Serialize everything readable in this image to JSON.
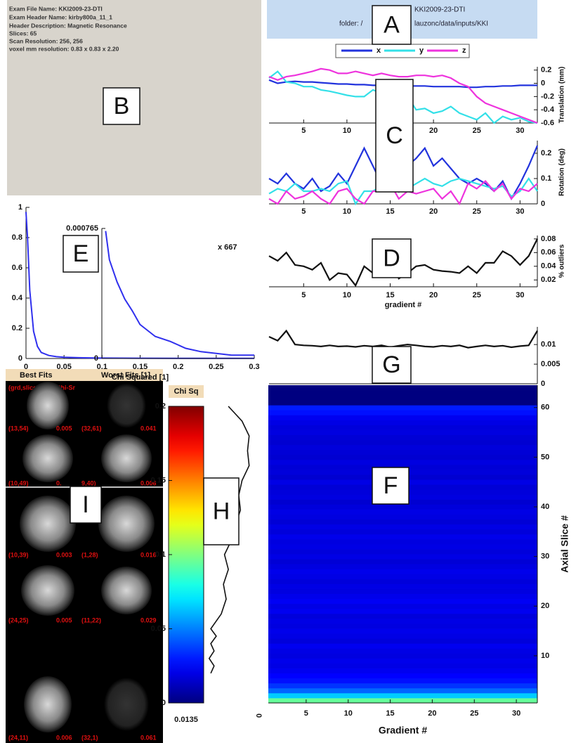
{
  "header": {
    "line1": "KKI2009-23-DTI",
    "line2": "folder: /",
    "line3": "lauzonc/data/inputs/KKI"
  },
  "info": [
    "Exam File Name:  KKI2009-23-DTI",
    "Exam Header Name:  kirby800a_11_1",
    "Header Description:  Magnetic Resonance",
    "Slices: 65",
    "Scan Resolution: 256, 256",
    "voxel mm resolution: 0.83 x 0.83 x 2.20"
  ],
  "panel_labels": [
    "A",
    "B",
    "C",
    "D",
    "E",
    "F",
    "G",
    "H",
    "I"
  ],
  "fits": {
    "headers": [
      "Best Fits",
      "Worst Fits [1]"
    ],
    "columns": [
      "(grd,slice)",
      "Chi-Sr"
    ],
    "rows": [
      [
        "(13,54)",
        "0.005",
        "(32,61)",
        "0.041"
      ],
      [
        "(10,49)",
        "0.",
        "9,40)",
        "0.006"
      ],
      [
        "(10,39)",
        "0.003",
        "(1,28)",
        "0.016"
      ],
      [
        "(24,25)",
        "0.005",
        "(11,22)",
        "0.029"
      ],
      [
        "(24,11)",
        "0.006",
        "(32,1)",
        "0.061"
      ]
    ]
  },
  "chart_data": [
    {
      "type": "line",
      "y_label": "Translation (mm)",
      "xlim": [
        1,
        32
      ],
      "ylim": [
        -0.6,
        0.25
      ],
      "yticks": [
        0.2,
        0,
        -0.2,
        -0.4,
        -0.6
      ],
      "xticks": [
        5,
        10,
        15,
        20,
        25,
        30
      ],
      "x": [
        1,
        2,
        3,
        4,
        5,
        6,
        7,
        8,
        9,
        10,
        11,
        12,
        13,
        14,
        15,
        16,
        17,
        18,
        19,
        20,
        21,
        22,
        23,
        24,
        25,
        26,
        27,
        28,
        29,
        30,
        31,
        32
      ],
      "series": [
        {
          "name": "x",
          "color": "#2233dd",
          "values": [
            0.05,
            0.0,
            0.02,
            0.03,
            0.02,
            0.02,
            0.01,
            0.0,
            -0.01,
            -0.01,
            -0.02,
            -0.02,
            -0.03,
            -0.03,
            -0.03,
            -0.03,
            -0.04,
            -0.04,
            -0.04,
            -0.05,
            -0.05,
            -0.05,
            -0.05,
            -0.06,
            -0.06,
            -0.05,
            -0.05,
            -0.04,
            -0.04,
            -0.03,
            -0.03,
            -0.03
          ]
        },
        {
          "name": "y",
          "color": "#33e0e8",
          "values": [
            0.08,
            0.18,
            0.02,
            0.0,
            -0.05,
            -0.05,
            -0.1,
            -0.12,
            -0.15,
            -0.18,
            -0.2,
            -0.2,
            -0.1,
            -0.15,
            -0.2,
            -0.35,
            -0.2,
            -0.4,
            -0.38,
            -0.45,
            -0.42,
            -0.35,
            -0.45,
            -0.5,
            -0.55,
            -0.45,
            -0.6,
            -0.5,
            -0.55,
            -0.52,
            -0.58,
            -0.6
          ]
        },
        {
          "name": "z",
          "color": "#ee33dd",
          "values": [
            0.1,
            0.05,
            0.1,
            0.12,
            0.15,
            0.18,
            0.22,
            0.2,
            0.15,
            0.15,
            0.18,
            0.15,
            0.12,
            0.15,
            0.12,
            0.1,
            0.1,
            0.12,
            0.12,
            0.1,
            0.12,
            0.08,
            0.0,
            -0.05,
            -0.2,
            -0.3,
            -0.35,
            -0.4,
            -0.45,
            -0.5,
            -0.55,
            -0.6
          ]
        }
      ]
    },
    {
      "type": "line",
      "y_label": "Rotation (deg)",
      "xlim": [
        1,
        32
      ],
      "ylim": [
        0,
        0.25
      ],
      "yticks": [
        0,
        0.1,
        0.2
      ],
      "xticks": [
        5,
        10,
        15,
        20,
        25,
        30
      ],
      "x": [
        1,
        2,
        3,
        4,
        5,
        6,
        7,
        8,
        9,
        10,
        11,
        12,
        13,
        14,
        15,
        16,
        17,
        18,
        19,
        20,
        21,
        22,
        23,
        24,
        25,
        26,
        27,
        28,
        29,
        30,
        31,
        32
      ],
      "series": [
        {
          "color": "#2233dd",
          "values": [
            0.1,
            0.08,
            0.12,
            0.08,
            0.06,
            0.1,
            0.05,
            0.07,
            0.12,
            0.08,
            0.15,
            0.22,
            0.15,
            0.08,
            0.12,
            0.05,
            0.15,
            0.18,
            0.22,
            0.15,
            0.18,
            0.14,
            0.1,
            0.08,
            0.1,
            0.08,
            0.05,
            0.09,
            0.02,
            0.08,
            0.15,
            0.23
          ]
        },
        {
          "color": "#33e0e8",
          "values": [
            0.04,
            0.06,
            0.05,
            0.08,
            0.05,
            0.05,
            0.06,
            0.05,
            0.08,
            0.09,
            0.0,
            0.05,
            0.05,
            0.07,
            0.08,
            0.05,
            0.06,
            0.08,
            0.1,
            0.08,
            0.07,
            0.09,
            0.1,
            0.09,
            0.08,
            0.07,
            0.06,
            0.07,
            0.03,
            0.05,
            0.1,
            0.05
          ]
        },
        {
          "color": "#ee33dd",
          "values": [
            0.02,
            0.0,
            0.05,
            0.02,
            0.03,
            0.05,
            0.02,
            0.0,
            0.05,
            0.06,
            0.02,
            0.0,
            0.05,
            0.05,
            0.08,
            0.02,
            0.05,
            0.04,
            0.05,
            0.06,
            0.02,
            0.05,
            0.0,
            0.08,
            0.06,
            0.09,
            0.05,
            0.08,
            0.02,
            0.06,
            0.05,
            0.08
          ]
        }
      ]
    },
    {
      "type": "line",
      "y_label": "% outliers",
      "x_label": "gradient #",
      "xlim": [
        1,
        32
      ],
      "ylim": [
        0.01,
        0.085
      ],
      "yticks": [
        0.02,
        0.04,
        0.06,
        0.08
      ],
      "xticks": [
        5,
        10,
        15,
        20,
        25,
        30
      ],
      "color": "#111111",
      "x": [
        1,
        2,
        3,
        4,
        5,
        6,
        7,
        8,
        9,
        10,
        11,
        12,
        13,
        14,
        15,
        16,
        17,
        18,
        19,
        20,
        21,
        22,
        23,
        24,
        25,
        26,
        27,
        28,
        29,
        30,
        31,
        32
      ],
      "values": [
        0.055,
        0.048,
        0.06,
        0.042,
        0.04,
        0.035,
        0.045,
        0.02,
        0.03,
        0.028,
        0.012,
        0.04,
        0.03,
        0.035,
        0.05,
        0.022,
        0.03,
        0.04,
        0.042,
        0.035,
        0.033,
        0.032,
        0.03,
        0.04,
        0.03,
        0.045,
        0.045,
        0.062,
        0.055,
        0.042,
        0.055,
        0.08
      ]
    },
    {
      "type": "line",
      "xlim": [
        1,
        32
      ],
      "ylim": [
        0,
        0.0145
      ],
      "yticks": [
        0,
        0.005,
        0.01
      ],
      "color": "#111111",
      "x": [
        1,
        2,
        3,
        4,
        5,
        6,
        7,
        8,
        9,
        10,
        11,
        12,
        13,
        14,
        15,
        16,
        17,
        18,
        19,
        20,
        21,
        22,
        23,
        24,
        25,
        26,
        27,
        28,
        29,
        30,
        31,
        32
      ],
      "values": [
        0.012,
        0.011,
        0.0135,
        0.01,
        0.0098,
        0.0097,
        0.0095,
        0.0098,
        0.0095,
        0.0096,
        0.0094,
        0.0097,
        0.0095,
        0.0098,
        0.0093,
        0.0097,
        0.01,
        0.0098,
        0.0095,
        0.0094,
        0.0097,
        0.0095,
        0.0098,
        0.0092,
        0.0095,
        0.0098,
        0.0095,
        0.0097,
        0.0093,
        0.0096,
        0.0098,
        0.0135
      ]
    },
    {
      "type": "heatmap",
      "x_label": "Gradient #",
      "y_label": "Axial Slice #",
      "xlim": [
        0.5,
        32.5
      ],
      "ylim": [
        0.5,
        64.5
      ],
      "clim": [
        0,
        0.2
      ],
      "xticks": [
        5,
        10,
        15,
        20,
        25,
        30
      ],
      "yticks": [
        10,
        20,
        30,
        40,
        50,
        60
      ],
      "y": [
        1,
        2,
        3,
        4,
        5,
        6,
        7,
        8,
        9,
        10,
        11,
        12,
        13,
        14,
        15,
        16,
        17,
        18,
        19,
        20,
        21,
        22,
        23,
        24,
        25,
        26,
        27,
        28,
        29,
        30,
        31,
        32,
        33,
        34,
        35,
        36,
        37,
        38,
        39,
        40,
        41,
        42,
        43,
        44,
        45,
        46,
        47,
        48,
        49,
        50,
        51,
        52,
        53,
        54,
        55,
        56,
        57,
        58,
        59,
        60,
        61,
        62,
        63,
        64
      ],
      "values": [
        0.095,
        0.065,
        0.045,
        0.035,
        0.028,
        0.025,
        0.022,
        0.02,
        0.021,
        0.019,
        0.02,
        0.022,
        0.018,
        0.02,
        0.021,
        0.019,
        0.02,
        0.018,
        0.022,
        0.02,
        0.023,
        0.021,
        0.019,
        0.02,
        0.018,
        0.02,
        0.021,
        0.019,
        0.017,
        0.02,
        0.018,
        0.02,
        0.019,
        0.021,
        0.018,
        0.02,
        0.017,
        0.019,
        0.02,
        0.018,
        0.016,
        0.019,
        0.018,
        0.017,
        0.02,
        0.016,
        0.018,
        0.017,
        0.019,
        0.016,
        0.017,
        0.018,
        0.016,
        0.017,
        0.019,
        0.018,
        0.02,
        0.022,
        0.028,
        0.03,
        0,
        0,
        0,
        0
      ]
    },
    {
      "type": "colorbar",
      "title": "Chi Sq",
      "clim": [
        0,
        0.2
      ],
      "yticks": [
        0,
        0.05,
        0.1,
        0.15,
        0.2
      ],
      "annotation": "0.0135",
      "xlim": [
        1,
        0
      ],
      "xticks": [
        0
      ],
      "y": [
        0.2,
        0.19,
        0.18,
        0.17,
        0.16,
        0.15,
        0.14,
        0.13,
        0.12,
        0.11,
        0.1,
        0.09,
        0.08,
        0.07,
        0.06,
        0.05,
        0.045,
        0.04,
        0.035,
        0.03,
        0.025,
        0.02
      ],
      "values": [
        0.55,
        0.3,
        0.17,
        0.2,
        0.17,
        0.3,
        0.36,
        0.33,
        0.42,
        0.49,
        0.62,
        0.55,
        0.64,
        0.59,
        0.68,
        0.87,
        0.77,
        0.87,
        0.81,
        0.9,
        0.81,
        0.87
      ]
    },
    {
      "type": "line",
      "x_label": "Chi Squared [1]",
      "xlim": [
        0,
        0.3
      ],
      "ylim": [
        0,
        1
      ],
      "color": "#3030ee",
      "xticks": [
        0,
        0.05,
        0.1,
        0.15,
        0.2,
        0.25,
        0.3
      ],
      "yticks": [
        0,
        0.2,
        0.4,
        0.6,
        0.8,
        1
      ],
      "x": [
        0,
        0.002,
        0.005,
        0.01,
        0.015,
        0.02,
        0.03,
        0.04,
        0.05,
        0.07,
        0.1,
        0.15,
        0.2,
        0.25,
        0.3
      ],
      "values": [
        0.97,
        0.8,
        0.45,
        0.18,
        0.08,
        0.04,
        0.02,
        0.012,
        0.008,
        0.005,
        0.003,
        0.002,
        0.001,
        0.001,
        0.001
      ]
    },
    {
      "type": "line",
      "annotation": "x 667",
      "xlim": [
        0.1,
        0.3
      ],
      "ylim": [
        0,
        0.000765
      ],
      "yticks": [
        0,
        0.000765
      ],
      "color": "#3030ee",
      "x": [
        0.105,
        0.11,
        0.12,
        0.13,
        0.14,
        0.15,
        0.17,
        0.19,
        0.21,
        0.23,
        0.25,
        0.27,
        0.3
      ],
      "values": [
        0.00075,
        0.00058,
        0.00045,
        0.00035,
        0.00028,
        0.0002,
        0.00013,
        0.0001,
        6e-05,
        4e-05,
        3e-05,
        2e-05,
        2e-05
      ]
    }
  ]
}
